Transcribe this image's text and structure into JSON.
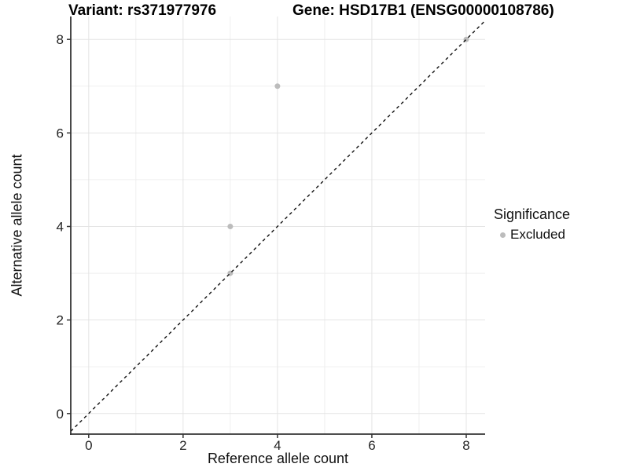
{
  "titles": {
    "left": "Variant: rs371977976",
    "right": "Gene: HSD17B1 (ENSG00000108786)"
  },
  "colors": {
    "point_excluded": "#bcbcbc",
    "reference_line": "#111111",
    "axis_line": "#343434",
    "grid_major": "#e4e4e4",
    "grid_minor": "#efefef",
    "tick_text": "#262626",
    "background": "#ffffff"
  },
  "chart_data": {
    "type": "scatter",
    "title_left": "Variant: rs371977976",
    "title_right": "Gene: HSD17B1 (ENSG00000108786)",
    "xlabel": "Reference allele count",
    "ylabel": "Alternative allele count",
    "xlim": [
      -0.38,
      8.4
    ],
    "ylim": [
      -0.44,
      8.49
    ],
    "x_ticks": [
      0,
      2,
      4,
      6,
      8
    ],
    "y_ticks": [
      0,
      2,
      4,
      6,
      8
    ],
    "x_minor_ticks": [
      1,
      3,
      5,
      7
    ],
    "y_minor_ticks": [
      1,
      3,
      5,
      7
    ],
    "grid": true,
    "legend": {
      "position": "right",
      "title": "Significance"
    },
    "series": [
      {
        "name": "Excluded",
        "color": "#bcbcbc",
        "points": [
          [
            3,
            3
          ],
          [
            3,
            4
          ],
          [
            4,
            7
          ],
          [
            8,
            8
          ]
        ]
      }
    ],
    "reference_line": {
      "kind": "identity y=x",
      "style": "dashed",
      "color": "#111111"
    }
  }
}
